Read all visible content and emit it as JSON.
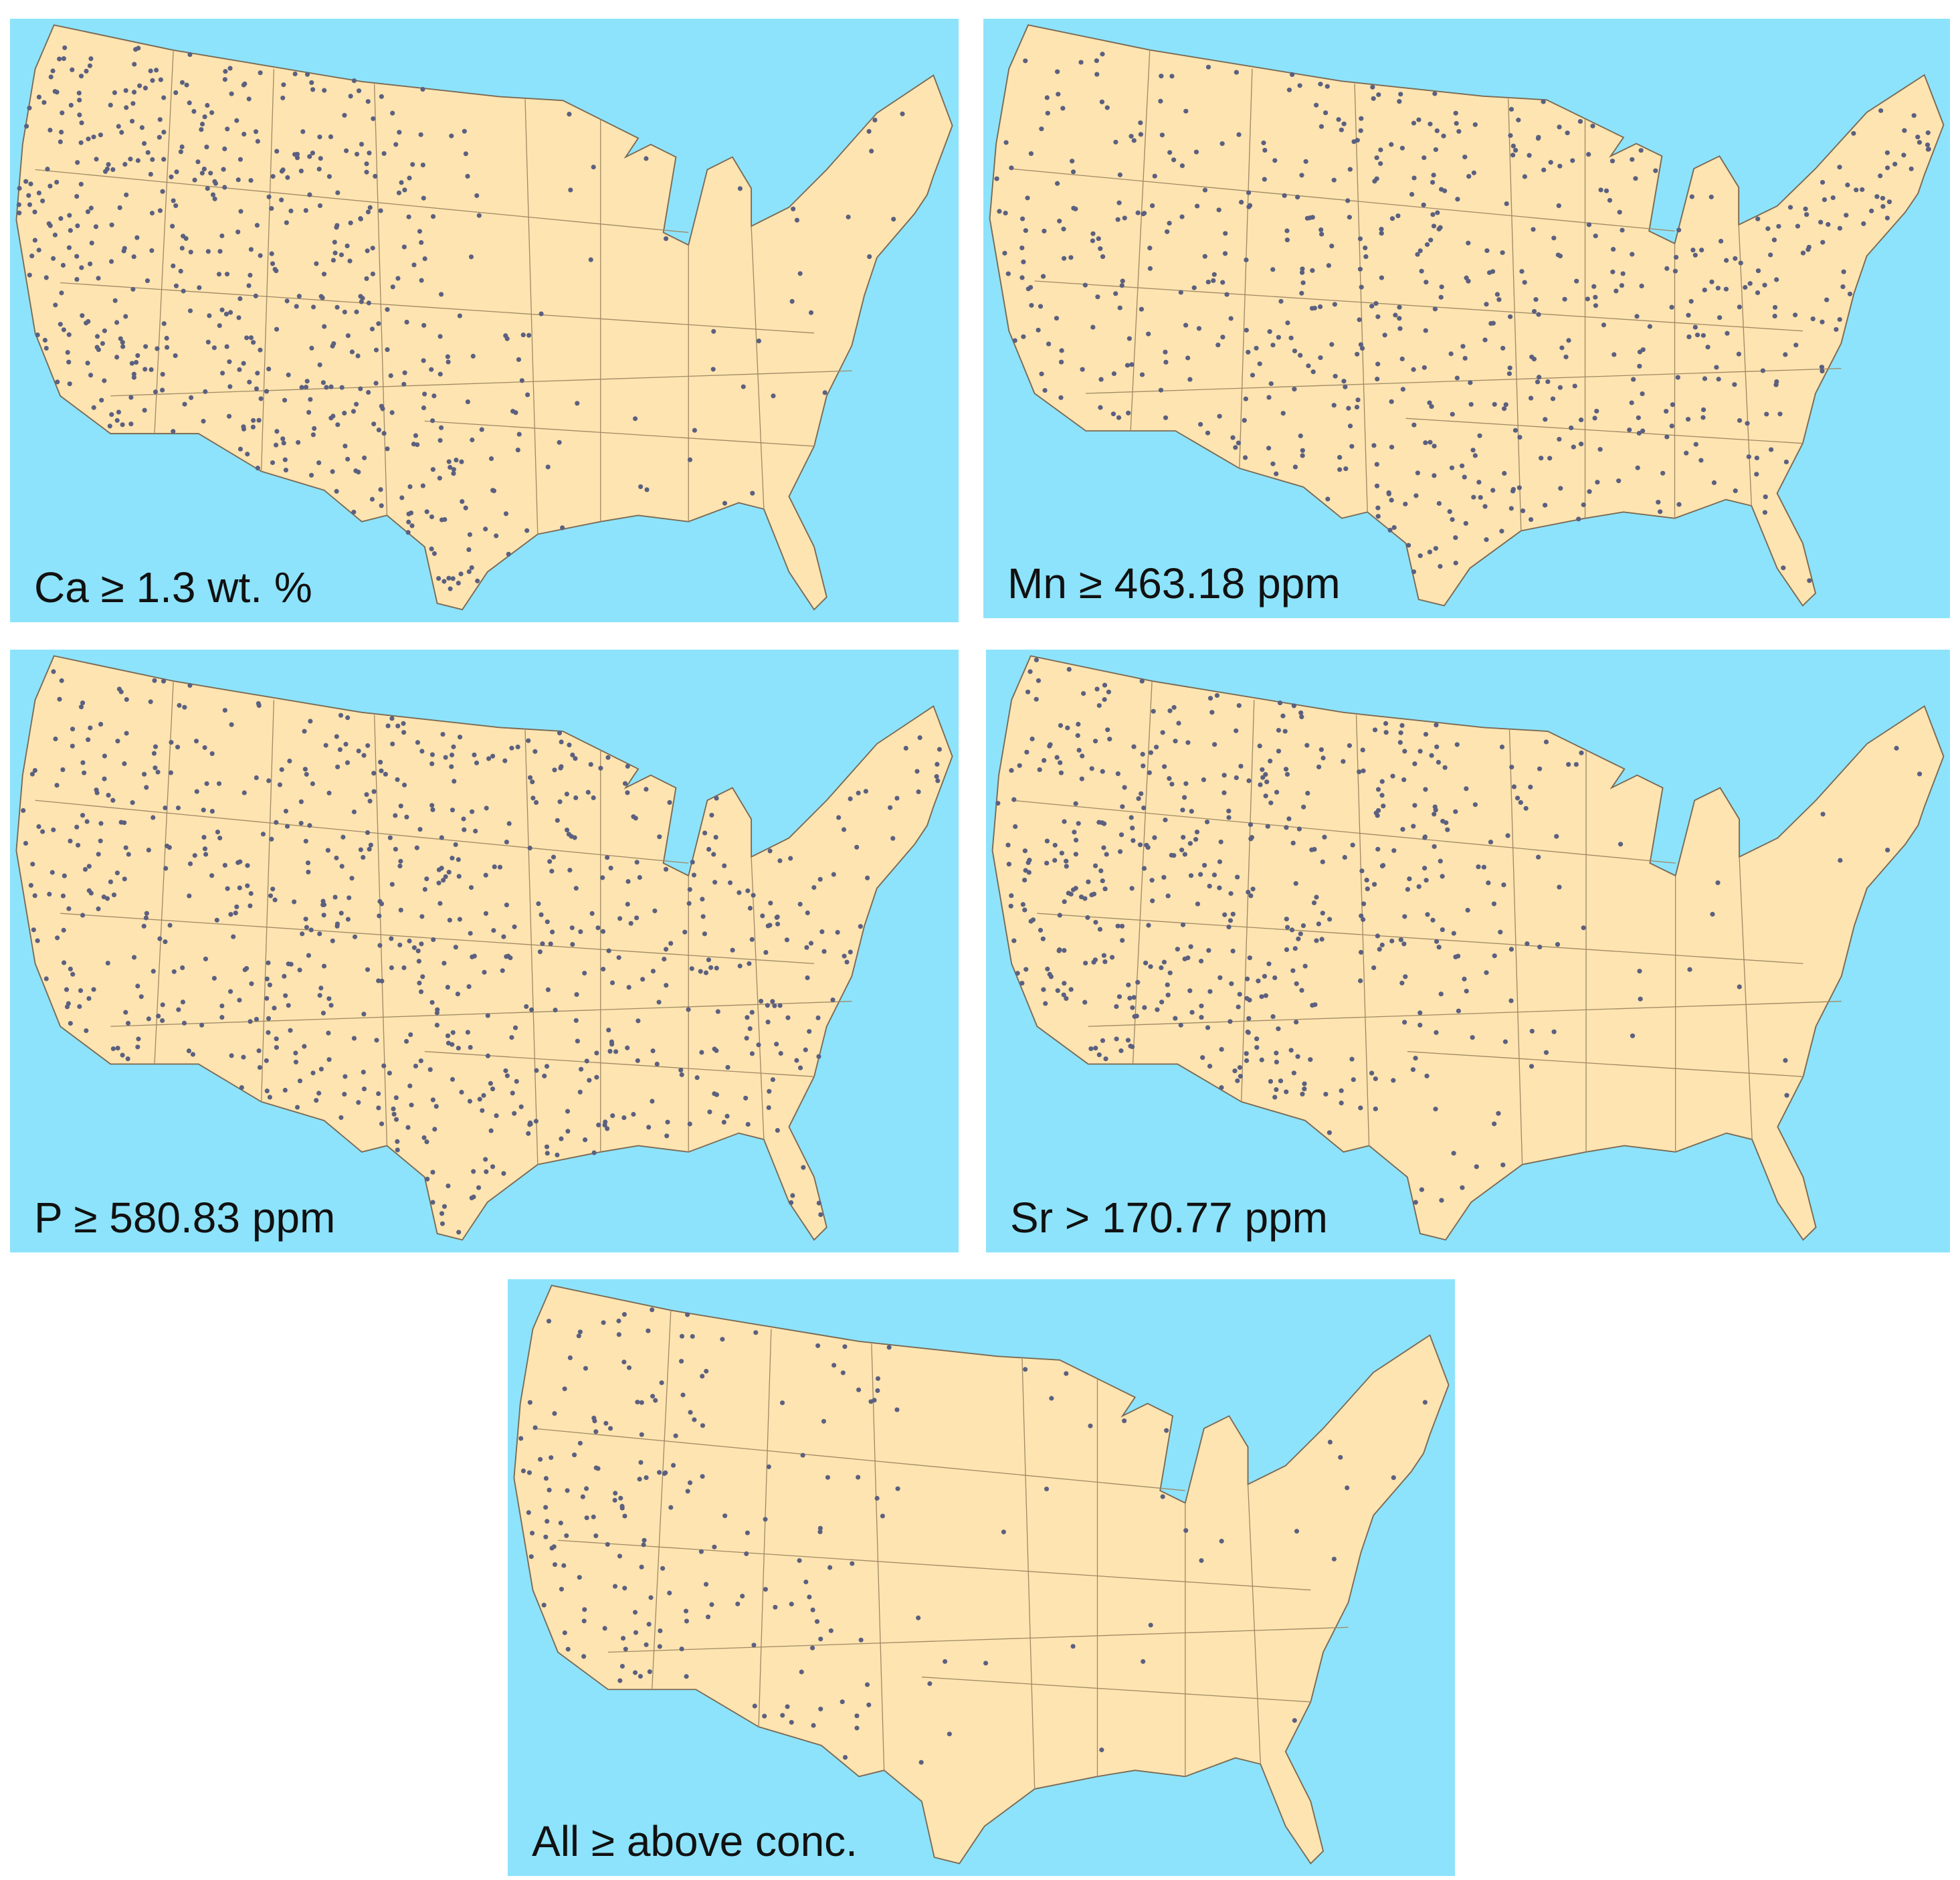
{
  "panels": [
    {
      "label": "Ca ≥ 1.3 wt. %"
    },
    {
      "label": "Mn ≥ 463.18 ppm"
    },
    {
      "label": "P ≥ 580.83 ppm"
    },
    {
      "label": "Sr > 170.77 ppm"
    },
    {
      "label": "All ≥ above conc."
    }
  ]
}
